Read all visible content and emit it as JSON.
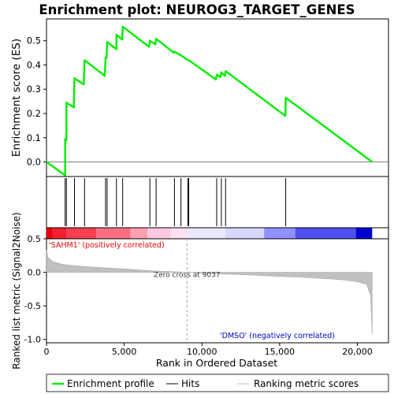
{
  "chart_data": {
    "type": "line",
    "title": "Enrichment plot: NEUROG3_TARGET_GENES",
    "colors": {
      "enrichment_line": "#00ee00",
      "hits": "#000000",
      "ranking_fill": "#c0c0c0",
      "zero_line": "#808080",
      "pos_label": "#ee0000",
      "neg_label": "#0000cc"
    },
    "x_range": [
      0,
      22000
    ],
    "x_ticks": [
      {
        "value": 0,
        "label": "0"
      },
      {
        "value": 5000,
        "label": "5,000"
      },
      {
        "value": 10000,
        "label": "10,000"
      },
      {
        "value": 15000,
        "label": "15,000"
      },
      {
        "value": 20000,
        "label": "20,000"
      }
    ],
    "xlabel": "Rank in Ordered Dataset",
    "enrichment_panel": {
      "ylabel": "Enrichment score (ES)",
      "ylim": [
        -0.06,
        0.59
      ],
      "y_ticks": [
        {
          "value": 0.0,
          "label": "0.0"
        },
        {
          "value": 0.1,
          "label": "0.1"
        },
        {
          "value": 0.2,
          "label": "0.2"
        },
        {
          "value": 0.3,
          "label": "0.3"
        },
        {
          "value": 0.4,
          "label": "0.4"
        },
        {
          "value": 0.5,
          "label": "0.5"
        }
      ],
      "es_points": [
        {
          "x": 0,
          "y": 0.0
        },
        {
          "x": 1200,
          "y": -0.055
        },
        {
          "x": 1200,
          "y": 0.095
        },
        {
          "x": 1280,
          "y": 0.09
        },
        {
          "x": 1280,
          "y": 0.245
        },
        {
          "x": 1760,
          "y": 0.225
        },
        {
          "x": 1800,
          "y": 0.345
        },
        {
          "x": 2400,
          "y": 0.32
        },
        {
          "x": 2450,
          "y": 0.42
        },
        {
          "x": 3750,
          "y": 0.355
        },
        {
          "x": 3800,
          "y": 0.43
        },
        {
          "x": 3870,
          "y": 0.43
        },
        {
          "x": 3900,
          "y": 0.495
        },
        {
          "x": 4500,
          "y": 0.465
        },
        {
          "x": 4500,
          "y": 0.525
        },
        {
          "x": 4870,
          "y": 0.505
        },
        {
          "x": 4900,
          "y": 0.558
        },
        {
          "x": 6600,
          "y": 0.475
        },
        {
          "x": 6650,
          "y": 0.5
        },
        {
          "x": 7000,
          "y": 0.485
        },
        {
          "x": 7050,
          "y": 0.508
        },
        {
          "x": 8200,
          "y": 0.45
        },
        {
          "x": 8230,
          "y": 0.455
        },
        {
          "x": 8650,
          "y": 0.44
        },
        {
          "x": 9100,
          "y": 0.42
        },
        {
          "x": 9150,
          "y": 0.42
        },
        {
          "x": 10900,
          "y": 0.34
        },
        {
          "x": 10950,
          "y": 0.36
        },
        {
          "x": 11200,
          "y": 0.35
        },
        {
          "x": 11250,
          "y": 0.37
        },
        {
          "x": 11480,
          "y": 0.355
        },
        {
          "x": 11520,
          "y": 0.375
        },
        {
          "x": 15370,
          "y": 0.19
        },
        {
          "x": 15390,
          "y": 0.265
        },
        {
          "x": 20950,
          "y": 0.0
        }
      ]
    },
    "hits_panel": {
      "hit_positions": [
        1200,
        1280,
        1800,
        2450,
        3800,
        3900,
        4500,
        4900,
        6650,
        7050,
        8230,
        8650,
        9100,
        9150,
        10950,
        11250,
        11520,
        15390
      ]
    },
    "ranking_panel": {
      "ylabel": "Ranked list metric (Signal2Noise)",
      "ylim": [
        -1.05,
        0.5
      ],
      "y_ticks": [
        {
          "value": 0.5,
          "label": "0.5"
        },
        {
          "value": 0.0,
          "label": "0.0"
        },
        {
          "value": -0.5,
          "label": "-0.5"
        },
        {
          "value": -1.0,
          "label": "-1.0"
        }
      ],
      "metric_curve": [
        {
          "x": 0,
          "y": 0.33
        },
        {
          "x": 100,
          "y": 0.22
        },
        {
          "x": 400,
          "y": 0.16
        },
        {
          "x": 1000,
          "y": 0.12
        },
        {
          "x": 2000,
          "y": 0.095
        },
        {
          "x": 3500,
          "y": 0.07
        },
        {
          "x": 5000,
          "y": 0.05
        },
        {
          "x": 7000,
          "y": 0.02
        },
        {
          "x": 9037,
          "y": 0.0
        },
        {
          "x": 11000,
          "y": -0.02
        },
        {
          "x": 13000,
          "y": -0.04
        },
        {
          "x": 15000,
          "y": -0.06
        },
        {
          "x": 17000,
          "y": -0.08
        },
        {
          "x": 19000,
          "y": -0.11
        },
        {
          "x": 20000,
          "y": -0.14
        },
        {
          "x": 20600,
          "y": -0.18
        },
        {
          "x": 20850,
          "y": -0.35
        },
        {
          "x": 20950,
          "y": -0.93
        }
      ],
      "zero_cross": 9037,
      "zero_cross_label": "Zero cross at 9037",
      "pos_label": "'SAHM1' (positively correlated)",
      "neg_label": "'DMSO' (negatively correlated)"
    },
    "legend": {
      "placement": "bottom",
      "items": [
        {
          "label": "Enrichment profile",
          "color": "#00ee00",
          "style": "thick"
        },
        {
          "label": "Hits",
          "color": "#000000",
          "style": "thin"
        },
        {
          "label": "Ranking metric scores",
          "color": "#c0c0c0",
          "style": "thin"
        }
      ]
    },
    "colorbar_stops": [
      {
        "x": 0,
        "color": "#e8000a"
      },
      {
        "x": 400,
        "color": "#f02030"
      },
      {
        "x": 1300,
        "color": "#f44050"
      },
      {
        "x": 3200,
        "color": "#f87080"
      },
      {
        "x": 5400,
        "color": "#fca0b0"
      },
      {
        "x": 6500,
        "color": "#ffc8e0"
      },
      {
        "x": 8000,
        "color": "#ffe0f0"
      },
      {
        "x": 9100,
        "color": "#e8e8ff"
      },
      {
        "x": 11500,
        "color": "#d8d8ff"
      },
      {
        "x": 14000,
        "color": "#9090ff"
      },
      {
        "x": 16000,
        "color": "#5050ee"
      },
      {
        "x": 19900,
        "color": "#0000d0"
      },
      {
        "x": 20950,
        "color": "#0000d0"
      }
    ]
  }
}
